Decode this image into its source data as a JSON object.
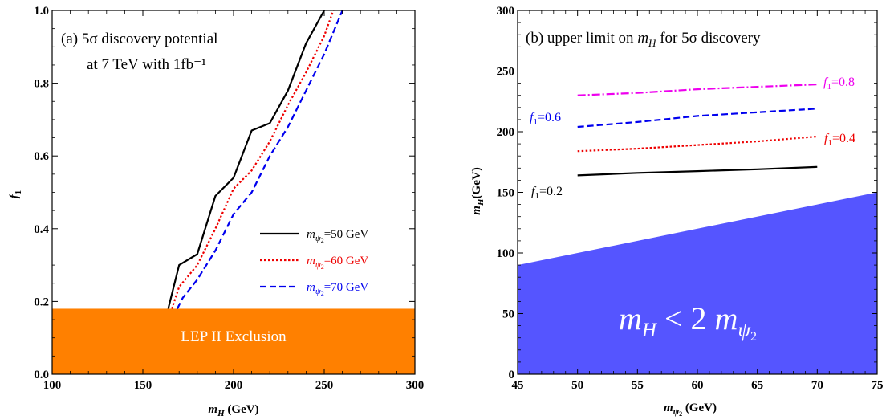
{
  "chart_data": [
    {
      "type": "line",
      "title_line1": "(a) 5σ discovery potential",
      "title_line2": "at 7 TeV with 1fb⁻¹",
      "xlabel": "m_H (GeV)",
      "ylabel": "f₁",
      "xlim": [
        100,
        300
      ],
      "ylim": [
        0,
        1
      ],
      "x_ticks": [
        100,
        150,
        200,
        250,
        300
      ],
      "x_tick_labels": [
        "100",
        "150",
        "200",
        "250",
        "300"
      ],
      "y_ticks": [
        0,
        0.2,
        0.4,
        0.6,
        0.8,
        1.0
      ],
      "y_tick_labels": [
        "0.0",
        "0.2",
        "0.4",
        "0.6",
        "0.8",
        "1.0"
      ],
      "legend_position": "bottom-right",
      "series": [
        {
          "name": "m_ψ2=50 GeV",
          "legend_label": "m",
          "legend_sub": "ψ",
          "legend_sub2": "2",
          "legend_tail": "=50 GeV",
          "color": "#000000",
          "dash": "solid",
          "points": [
            [
              164,
              0.18
            ],
            [
              170,
              0.3
            ],
            [
              180,
              0.33
            ],
            [
              190,
              0.49
            ],
            [
              200,
              0.54
            ],
            [
              210,
              0.67
            ],
            [
              220,
              0.69
            ],
            [
              230,
              0.78
            ],
            [
              240,
              0.91
            ],
            [
              250,
              1.0
            ]
          ]
        },
        {
          "name": "m_ψ2=60 GeV",
          "legend_label": "m",
          "legend_sub": "ψ",
          "legend_sub2": "2",
          "legend_tail": "=60 GeV",
          "color": "#ee0000",
          "dash": "dotted",
          "points": [
            [
              166,
              0.18
            ],
            [
              170,
              0.24
            ],
            [
              180,
              0.3
            ],
            [
              190,
              0.4
            ],
            [
              200,
              0.51
            ],
            [
              210,
              0.56
            ],
            [
              220,
              0.64
            ],
            [
              230,
              0.74
            ],
            [
              240,
              0.83
            ],
            [
              250,
              0.93
            ],
            [
              255,
              1.0
            ]
          ]
        },
        {
          "name": "m_ψ2=70 GeV",
          "legend_label": "m",
          "legend_sub": "ψ",
          "legend_sub2": "2",
          "legend_tail": "=70 GeV",
          "color": "#0000ee",
          "dash": "dashed",
          "points": [
            [
              169,
              0.18
            ],
            [
              172,
              0.21
            ],
            [
              180,
              0.26
            ],
            [
              190,
              0.34
            ],
            [
              200,
              0.44
            ],
            [
              210,
              0.5
            ],
            [
              220,
              0.6
            ],
            [
              230,
              0.68
            ],
            [
              240,
              0.78
            ],
            [
              250,
              0.88
            ],
            [
              260,
              1.0
            ]
          ]
        }
      ],
      "exclusion": {
        "label": "LEP II Exclusion",
        "y_range": [
          0,
          0.18
        ],
        "color": "#ff8000"
      }
    },
    {
      "type": "line",
      "title": "(b) upper limit on m_H for 5σ discovery",
      "title_pre": "(b) upper limit on ",
      "title_var": "m",
      "title_sub": "H",
      "title_post": " for 5σ discovery",
      "xlabel": "m_ψ2 (GeV)",
      "ylabel": "m_H(GeV)",
      "xlim": [
        45,
        75
      ],
      "ylim": [
        0,
        300
      ],
      "x_ticks": [
        45,
        50,
        55,
        60,
        65,
        70,
        75
      ],
      "x_tick_labels": [
        "45",
        "50",
        "55",
        "60",
        "65",
        "70",
        "75"
      ],
      "y_ticks": [
        0,
        50,
        100,
        150,
        200,
        250,
        300
      ],
      "y_tick_labels": [
        "0",
        "50",
        "100",
        "150",
        "200",
        "250",
        "300"
      ],
      "series": [
        {
          "name": "f1=0.2",
          "label": "f",
          "label_sub": "1",
          "label_tail": "=0.2",
          "color": "#000000",
          "dash": "solid",
          "points": [
            [
              50,
              164
            ],
            [
              55,
              166
            ],
            [
              60,
              167.5
            ],
            [
              65,
              169
            ],
            [
              70,
              171
            ]
          ]
        },
        {
          "name": "f1=0.4",
          "label": "f",
          "label_sub": "1",
          "label_tail": "=0.4",
          "color": "#ee0000",
          "dash": "dotted",
          "points": [
            [
              50,
              184
            ],
            [
              55,
              186
            ],
            [
              60,
              189
            ],
            [
              65,
              192
            ],
            [
              70,
              196
            ]
          ]
        },
        {
          "name": "f1=0.6",
          "label": "f",
          "label_sub": "1",
          "label_tail": "=0.6",
          "color": "#0000ee",
          "dash": "dashed",
          "points": [
            [
              50,
              204
            ],
            [
              55,
              208
            ],
            [
              60,
              213
            ],
            [
              65,
              216
            ],
            [
              70,
              219
            ]
          ]
        },
        {
          "name": "f1=0.8",
          "label": "f",
          "label_sub": "1",
          "label_tail": "=0.8",
          "color": "#ee00ee",
          "dash": "dashdot",
          "points": [
            [
              50,
              230
            ],
            [
              55,
              232
            ],
            [
              60,
              235
            ],
            [
              65,
              237
            ],
            [
              70,
              239
            ]
          ]
        }
      ],
      "region": {
        "label": "m_H < 2 m_ψ2",
        "color": "#5555ff",
        "boundary": [
          [
            45,
            90
          ],
          [
            75,
            150
          ]
        ]
      }
    }
  ]
}
